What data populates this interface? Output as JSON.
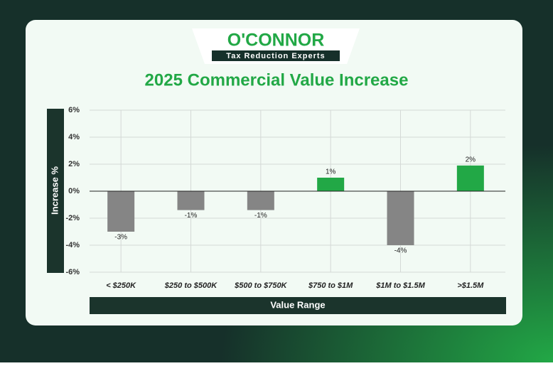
{
  "logo": {
    "name": "O'CONNOR",
    "tagline": "Tax Reduction Experts"
  },
  "chart_data": {
    "type": "bar",
    "title": "2025 Commercial Value Increase",
    "x_label": "Value Range",
    "y_label": "Increase %",
    "categories": [
      "< $250K",
      "$250 to $500K",
      "$500 to $750K",
      "$750 to $1M",
      "$1M to $1.5M",
      ">$1.5M"
    ],
    "values": [
      -3,
      -1.4,
      -1.4,
      1,
      -4,
      1.9
    ],
    "value_labels": [
      "-3%",
      "-1%",
      "-1%",
      "1%",
      "-4%",
      "2%"
    ],
    "colors": [
      "#858585",
      "#858585",
      "#858585",
      "#22a846",
      "#858585",
      "#22a846"
    ],
    "ylim": [
      -6,
      6
    ],
    "yticks": [
      {
        "value": -6,
        "label": "-6%"
      },
      {
        "value": -4,
        "label": "-4%"
      },
      {
        "value": -2,
        "label": "-2%"
      },
      {
        "value": 0,
        "label": "0%"
      },
      {
        "value": 2,
        "label": "2%"
      },
      {
        "value": 4,
        "label": "4%"
      },
      {
        "value": 6,
        "label": "6%"
      }
    ],
    "grid": true
  }
}
